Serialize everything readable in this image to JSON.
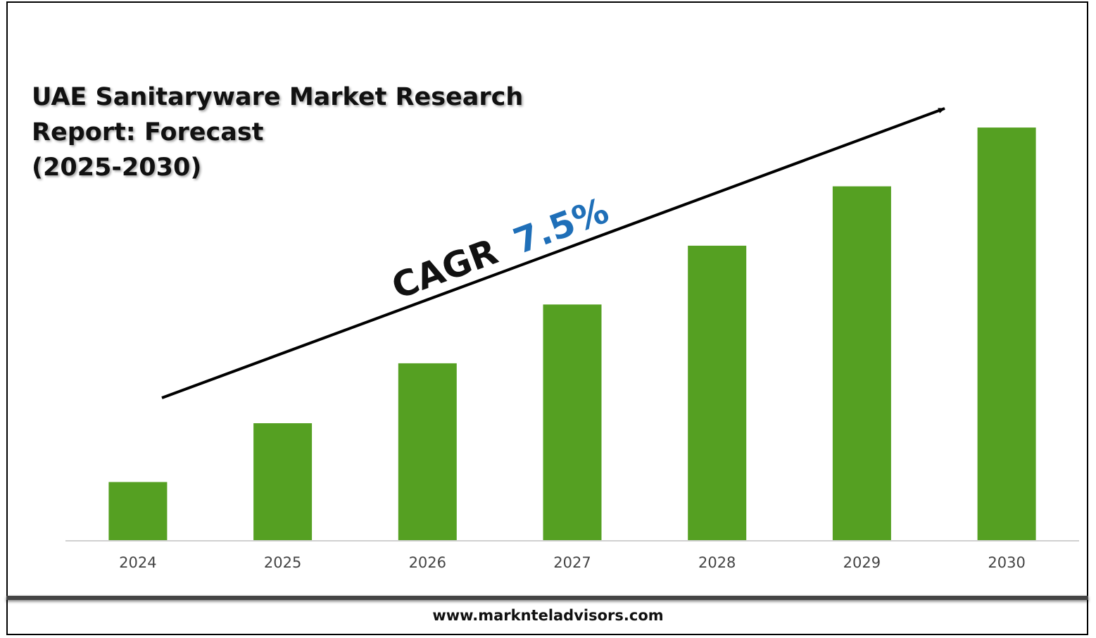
{
  "title_lines": [
    "UAE Sanitaryware Market Research",
    "Report: Forecast",
    "(2025-2030)"
  ],
  "annotation": {
    "prefix": "CAGR",
    "value": "7.5%"
  },
  "colors": {
    "bar": "#55a022",
    "cagr_value": "#1f6fb8",
    "axis": "#d0d0d0",
    "tick_label": "#444444"
  },
  "footer": {
    "url": "www.marknteladvisors.com"
  },
  "chart_data": {
    "type": "bar",
    "categories": [
      "2024",
      "2025",
      "2026",
      "2027",
      "2028",
      "2029",
      "2030"
    ],
    "values": [
      1.0,
      2.0,
      3.02,
      4.02,
      5.02,
      6.03,
      7.03
    ],
    "ylim": [
      0,
      8.6
    ],
    "grid": false,
    "legend": "none"
  }
}
